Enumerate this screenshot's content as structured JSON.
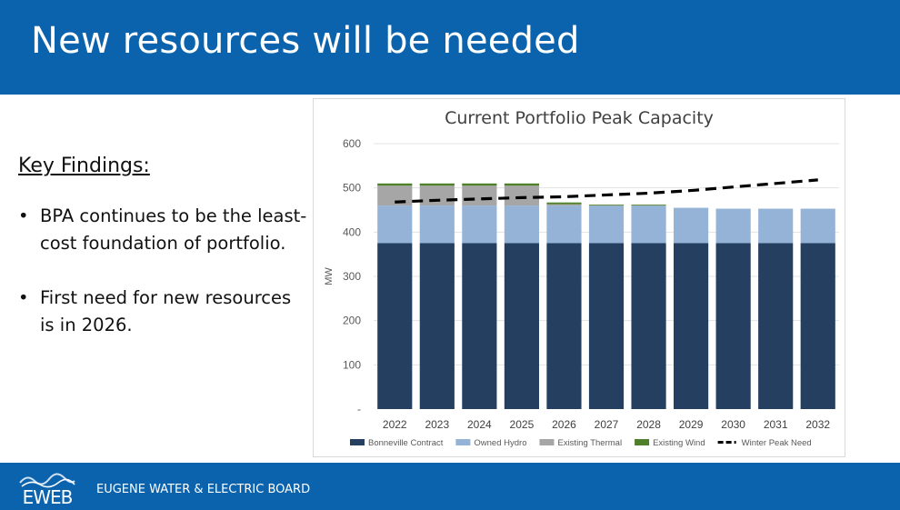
{
  "header": {
    "title": "New resources will be needed"
  },
  "left": {
    "heading": "Key Findings:",
    "bullets": [
      "BPA continues to be the least-cost foundation of portfolio.",
      "First need for new resources is in 2026."
    ],
    "bullet_symbol": "•"
  },
  "footer": {
    "logo_text": "EWEB",
    "org_name": "EUGENE WATER & ELECTRIC BOARD"
  },
  "chart_data": {
    "type": "bar",
    "stacked": true,
    "title": "Current Portfolio Peak Capacity",
    "ylabel": "MW",
    "xlabel": "",
    "ylim": [
      0,
      600
    ],
    "yticks": [
      "-",
      "100",
      "200",
      "300",
      "400",
      "500",
      "600"
    ],
    "categories": [
      "2022",
      "2023",
      "2024",
      "2025",
      "2026",
      "2027",
      "2028",
      "2029",
      "2030",
      "2031",
      "2032"
    ],
    "series": [
      {
        "name": "Bonneville Contract",
        "color": "#243f60",
        "values": [
          375,
          375,
          375,
          375,
          375,
          375,
          375,
          375,
          375,
          375,
          375
        ]
      },
      {
        "name": "Owned Hydro",
        "color": "#95b3d7",
        "values": [
          85,
          85,
          85,
          85,
          85,
          85,
          85,
          80,
          78,
          78,
          78
        ]
      },
      {
        "name": "Existing Thermal",
        "color": "#a6a6a6",
        "values": [
          45,
          45,
          45,
          45,
          3,
          0,
          0,
          0,
          0,
          0,
          0
        ]
      },
      {
        "name": "Existing Wind",
        "color": "#4f7f2b",
        "values": [
          5,
          5,
          5,
          5,
          4,
          2,
          2,
          0,
          0,
          0,
          0
        ]
      }
    ],
    "line": {
      "name": "Winter Peak Need",
      "color": "#000000",
      "values": [
        468,
        472,
        475,
        478,
        480,
        484,
        488,
        494,
        502,
        510,
        518
      ]
    },
    "grid": true,
    "legend_position": "bottom"
  }
}
